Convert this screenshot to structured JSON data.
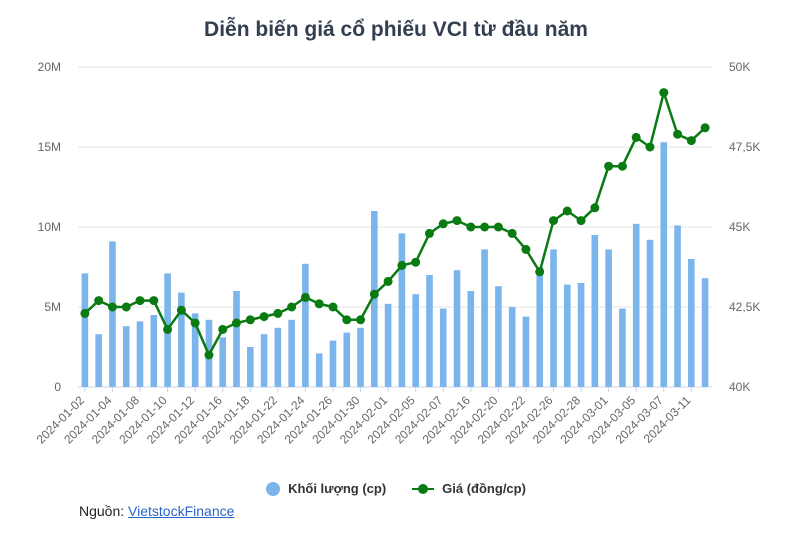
{
  "chart_data": {
    "type": "bar+line",
    "title": "Diễn biến giá cổ phiếu VCI từ đầu năm",
    "x_tick_labels": [
      "2024-01-02",
      "2024-01-04",
      "2024-01-08",
      "2024-01-10",
      "2024-01-12",
      "2024-01-16",
      "2024-01-18",
      "2024-01-22",
      "2024-01-24",
      "2024-01-26",
      "2024-01-30",
      "2024-02-01",
      "2024-02-05",
      "2024-02-07",
      "2024-02-16",
      "2024-02-20",
      "2024-02-22",
      "2024-02-26",
      "2024-02-28",
      "2024-03-01",
      "2024-03-05",
      "2024-03-07",
      "2024-03-11"
    ],
    "y_left": {
      "ticks": [
        "0",
        "5M",
        "10M",
        "15M",
        "20M"
      ],
      "min": 0,
      "max": 20000000
    },
    "y_right": {
      "ticks": [
        "40K",
        "42,5K",
        "45K",
        "47,5K",
        "50K"
      ],
      "min": 40000,
      "max": 50000
    },
    "grid": true,
    "legend_position": "bottom-center",
    "series": [
      {
        "name": "Khối lượng (cp)",
        "type": "bar",
        "axis": "left",
        "color": "#7cb5ec",
        "values": [
          7100000,
          3300000,
          9100000,
          3800000,
          4100000,
          4500000,
          7100000,
          5900000,
          4600000,
          4200000,
          3100000,
          6000000,
          2500000,
          3300000,
          3700000,
          4200000,
          7700000,
          2100000,
          2900000,
          3400000,
          3700000,
          11000000,
          5200000,
          9600000,
          5800000,
          7000000,
          4900000,
          7300000,
          6000000,
          8600000,
          6300000,
          5000000,
          4400000,
          7500000,
          8600000,
          6400000,
          6500000,
          9500000,
          8600000,
          4900000,
          10200000,
          9200000,
          15300000,
          10100000,
          8000000,
          6800000
        ]
      },
      {
        "name": "Giá (đồng/cp)",
        "type": "line",
        "axis": "right",
        "color": "#0a7a12",
        "values": [
          42300,
          42700,
          42500,
          42500,
          42700,
          42700,
          41800,
          42400,
          42000,
          41000,
          41800,
          42000,
          42100,
          42200,
          42300,
          42500,
          42800,
          42600,
          42500,
          42100,
          42100,
          42900,
          43300,
          43800,
          43900,
          44800,
          45100,
          45200,
          45000,
          45000,
          45000,
          44800,
          44300,
          43600,
          45200,
          45500,
          45200,
          45600,
          46900,
          46900,
          47800,
          47500,
          49200,
          47900,
          47700,
          48100
        ]
      }
    ]
  },
  "legend": {
    "volume_label": "Khối lượng (cp)",
    "price_label": "Giá (đồng/cp)"
  },
  "source": {
    "prefix": "Nguồn: ",
    "link_text": "VietstockFinance"
  },
  "colors": {
    "bar": "#7cb5ec",
    "line": "#0a7a12",
    "title": "#333f50",
    "grid": "#e6e6e6"
  }
}
